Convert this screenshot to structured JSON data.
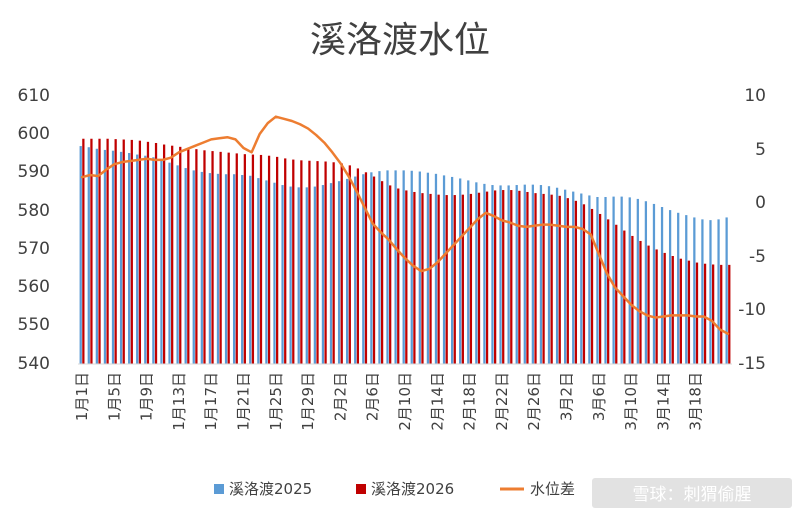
{
  "chart_data": {
    "type": "bar",
    "title": "溪洛渡水位",
    "xlabel": "",
    "ylabel_left": "",
    "ylabel_right": "",
    "ylim_left": [
      540,
      610
    ],
    "ylim_right": [
      -15,
      10
    ],
    "yticks_left": [
      "610",
      "600",
      "590",
      "580",
      "570",
      "560",
      "550",
      "540"
    ],
    "yticks_right": [
      "10",
      "5",
      "0",
      "-5",
      "-10",
      "-15"
    ],
    "x_tick_labels": [
      "1月1日",
      "1月5日",
      "1月9日",
      "1月13日",
      "1月17日",
      "1月21日",
      "1月25日",
      "1月29日",
      "2月2日",
      "2月6日",
      "2月10日",
      "2月14日",
      "2月18日",
      "2月22日",
      "2月26日",
      "3月2日",
      "3月6日",
      "3月10日",
      "3月14日",
      "3月18日"
    ],
    "x_tick_step": 4,
    "grid": false,
    "legend_position": "bottom",
    "categories_count": 81,
    "series": [
      {
        "name": "溪洛渡2025",
        "kind": "bar",
        "axis": "left",
        "color": "#5B9BD5",
        "values": [
          596.5,
          596.2,
          595.8,
          595.5,
          595.3,
          595.0,
          594.7,
          594.3,
          594.0,
          593.6,
          593.0,
          592.2,
          591.5,
          590.8,
          590.2,
          589.8,
          589.5,
          589.3,
          589.2,
          589.2,
          589.0,
          588.8,
          588.2,
          587.6,
          587.0,
          586.4,
          586.0,
          585.8,
          585.8,
          586.0,
          586.4,
          586.9,
          587.4,
          588.0,
          588.6,
          589.2,
          589.7,
          590.0,
          590.2,
          590.2,
          590.2,
          590.1,
          589.9,
          589.6,
          589.3,
          588.9,
          588.5,
          588.1,
          587.6,
          587.1,
          586.7,
          586.4,
          586.3,
          586.3,
          586.4,
          586.5,
          586.5,
          586.4,
          586.1,
          585.7,
          585.2,
          584.7,
          584.2,
          583.7,
          583.3,
          583.3,
          583.4,
          583.4,
          583.2,
          582.8,
          582.2,
          581.5,
          580.7,
          579.9,
          579.2,
          578.6,
          578.0,
          577.5,
          577.3,
          577.5,
          578.0
        ]
      },
      {
        "name": "溪洛渡2026",
        "kind": "bar",
        "axis": "left",
        "color": "#C00000",
        "values": [
          598.4,
          598.4,
          598.4,
          598.4,
          598.3,
          598.2,
          598.1,
          597.9,
          597.6,
          597.3,
          596.9,
          596.6,
          596.3,
          596.0,
          595.7,
          595.4,
          595.2,
          595.0,
          594.8,
          594.6,
          594.4,
          594.3,
          594.2,
          594.0,
          593.7,
          593.3,
          593.0,
          592.8,
          592.7,
          592.6,
          592.5,
          592.3,
          592.0,
          591.5,
          590.7,
          589.7,
          588.6,
          587.4,
          586.3,
          585.5,
          585.0,
          584.6,
          584.3,
          584.1,
          583.9,
          583.8,
          583.8,
          583.9,
          584.1,
          584.4,
          584.7,
          585.0,
          585.1,
          585.1,
          584.9,
          584.6,
          584.3,
          584.1,
          583.9,
          583.6,
          583.0,
          582.3,
          581.4,
          580.2,
          578.9,
          577.5,
          576.1,
          574.6,
          573.2,
          571.9,
          570.7,
          569.7,
          568.8,
          568.0,
          567.3,
          566.8,
          566.3,
          566.0,
          565.8,
          565.7,
          565.7
        ]
      },
      {
        "name": "水位差",
        "kind": "line",
        "axis": "right",
        "color": "#ED7D31",
        "values": [
          2.3,
          2.5,
          2.4,
          3.0,
          3.5,
          3.7,
          3.8,
          3.9,
          4.0,
          3.9,
          3.9,
          4.1,
          4.6,
          4.9,
          5.2,
          5.5,
          5.8,
          5.9,
          6.0,
          5.8,
          5.0,
          4.6,
          6.3,
          7.3,
          7.9,
          7.7,
          7.5,
          7.2,
          6.8,
          6.2,
          5.5,
          4.6,
          3.6,
          2.4,
          1.0,
          -0.5,
          -2.0,
          -2.8,
          -3.5,
          -4.4,
          -5.2,
          -5.9,
          -6.4,
          -6.2,
          -5.6,
          -4.8,
          -4.0,
          -3.2,
          -2.4,
          -1.6,
          -1.0,
          -1.3,
          -1.7,
          -1.9,
          -2.2,
          -2.3,
          -2.2,
          -2.1,
          -2.1,
          -2.2,
          -2.3,
          -2.3,
          -2.5,
          -3.0,
          -4.8,
          -6.6,
          -7.9,
          -8.7,
          -9.5,
          -10.1,
          -10.5,
          -10.7,
          -10.6,
          -10.5,
          -10.5,
          -10.5,
          -10.6,
          -10.6,
          -11.0,
          -11.8,
          -12.2
        ]
      }
    ]
  },
  "watermark": {
    "text": "雪球：刺猬偷腥"
  }
}
